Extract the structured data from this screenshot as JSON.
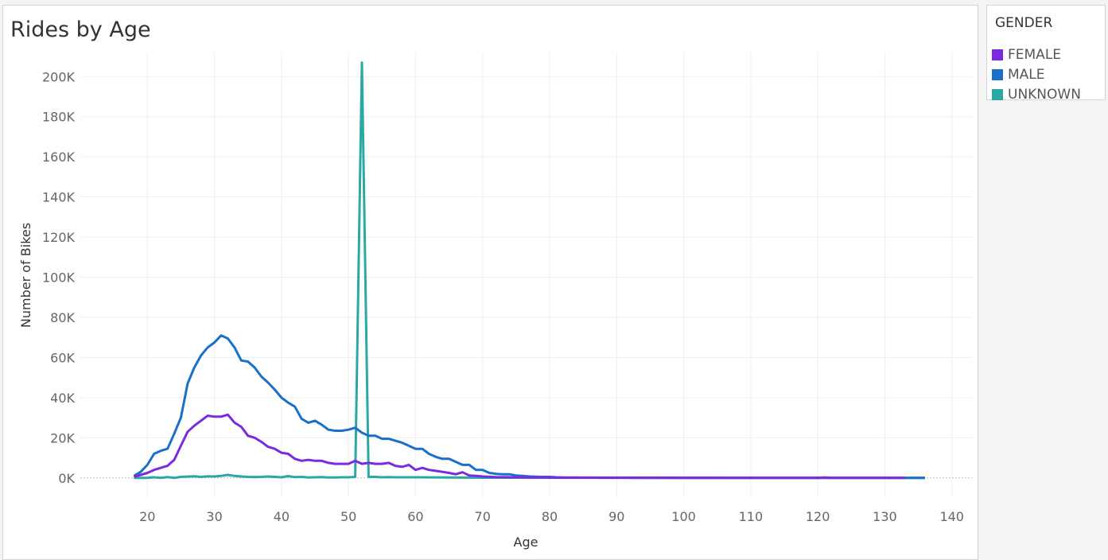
{
  "legend": {
    "title": "GENDER",
    "items": [
      {
        "label": "FEMALE",
        "color": "#7b2ae0"
      },
      {
        "label": "MALE",
        "color": "#1a6fc9"
      },
      {
        "label": "UNKNOWN",
        "color": "#2aa8a4"
      }
    ]
  },
  "chart_data": {
    "type": "line",
    "title": "Rides by Age",
    "xlabel": "Age",
    "ylabel": "Number of Bikes",
    "xlim": [
      10,
      143
    ],
    "ylim": [
      -10000,
      212000
    ],
    "xticks": [
      20,
      30,
      40,
      50,
      60,
      70,
      80,
      90,
      100,
      110,
      120,
      130,
      140
    ],
    "yticks": [
      0,
      20000,
      40000,
      60000,
      80000,
      100000,
      120000,
      140000,
      160000,
      180000,
      200000
    ],
    "ytick_labels": [
      "0K",
      "20K",
      "40K",
      "60K",
      "80K",
      "100K",
      "120K",
      "140K",
      "160K",
      "180K",
      "200K"
    ],
    "grid": true,
    "legend_position": "right",
    "series": [
      {
        "name": "FEMALE",
        "color": "#7b2ae0",
        "points": [
          [
            18,
            500
          ],
          [
            19,
            1500
          ],
          [
            20,
            2500
          ],
          [
            21,
            4000
          ],
          [
            22,
            5000
          ],
          [
            23,
            6000
          ],
          [
            24,
            9000
          ],
          [
            25,
            16000
          ],
          [
            26,
            23000
          ],
          [
            27,
            26000
          ],
          [
            28,
            28500
          ],
          [
            29,
            31000
          ],
          [
            30,
            30500
          ],
          [
            31,
            30500
          ],
          [
            32,
            31500
          ],
          [
            33,
            27500
          ],
          [
            34,
            25500
          ],
          [
            35,
            21000
          ],
          [
            36,
            20000
          ],
          [
            37,
            18000
          ],
          [
            38,
            15500
          ],
          [
            39,
            14500
          ],
          [
            40,
            12500
          ],
          [
            41,
            12000
          ],
          [
            42,
            9500
          ],
          [
            43,
            8500
          ],
          [
            44,
            9000
          ],
          [
            45,
            8500
          ],
          [
            46,
            8500
          ],
          [
            47,
            7500
          ],
          [
            48,
            7000
          ],
          [
            49,
            7000
          ],
          [
            50,
            7000
          ],
          [
            51,
            8500
          ],
          [
            52,
            7000
          ],
          [
            53,
            7500
          ],
          [
            54,
            7000
          ],
          [
            55,
            7000
          ],
          [
            56,
            7500
          ],
          [
            57,
            6000
          ],
          [
            58,
            5500
          ],
          [
            59,
            6500
          ],
          [
            60,
            4000
          ],
          [
            61,
            5000
          ],
          [
            62,
            4000
          ],
          [
            63,
            3500
          ],
          [
            64,
            3000
          ],
          [
            65,
            2500
          ],
          [
            66,
            1800
          ],
          [
            67,
            2800
          ],
          [
            68,
            1200
          ],
          [
            69,
            1000
          ],
          [
            70,
            700
          ],
          [
            72,
            400
          ],
          [
            75,
            300
          ],
          [
            80,
            150
          ],
          [
            85,
            100
          ],
          [
            90,
            50
          ],
          [
            100,
            30
          ],
          [
            110,
            20
          ],
          [
            120,
            20
          ],
          [
            121,
            200
          ],
          [
            122,
            10
          ],
          [
            130,
            10
          ],
          [
            133,
            5
          ]
        ]
      },
      {
        "name": "MALE",
        "color": "#1a6fc9",
        "points": [
          [
            18,
            1000
          ],
          [
            19,
            3000
          ],
          [
            20,
            6500
          ],
          [
            21,
            12000
          ],
          [
            22,
            13500
          ],
          [
            23,
            14500
          ],
          [
            24,
            22000
          ],
          [
            25,
            30000
          ],
          [
            26,
            47000
          ],
          [
            27,
            55000
          ],
          [
            28,
            61000
          ],
          [
            29,
            65000
          ],
          [
            30,
            67500
          ],
          [
            31,
            71000
          ],
          [
            32,
            69500
          ],
          [
            33,
            65000
          ],
          [
            34,
            58500
          ],
          [
            35,
            58000
          ],
          [
            36,
            55000
          ],
          [
            37,
            50500
          ],
          [
            38,
            47500
          ],
          [
            39,
            44000
          ],
          [
            40,
            40000
          ],
          [
            41,
            37500
          ],
          [
            42,
            35500
          ],
          [
            43,
            29500
          ],
          [
            44,
            27500
          ],
          [
            45,
            28500
          ],
          [
            46,
            26500
          ],
          [
            47,
            24000
          ],
          [
            48,
            23500
          ],
          [
            49,
            23500
          ],
          [
            50,
            24000
          ],
          [
            51,
            25000
          ],
          [
            52,
            22500
          ],
          [
            53,
            21000
          ],
          [
            54,
            21000
          ],
          [
            55,
            19500
          ],
          [
            56,
            19500
          ],
          [
            57,
            18500
          ],
          [
            58,
            17500
          ],
          [
            59,
            16000
          ],
          [
            60,
            14500
          ],
          [
            61,
            14500
          ],
          [
            62,
            12000
          ],
          [
            63,
            10500
          ],
          [
            64,
            9500
          ],
          [
            65,
            9500
          ],
          [
            66,
            8000
          ],
          [
            67,
            6500
          ],
          [
            68,
            6500
          ],
          [
            69,
            4000
          ],
          [
            70,
            4000
          ],
          [
            71,
            2500
          ],
          [
            72,
            2000
          ],
          [
            73,
            1800
          ],
          [
            74,
            1800
          ],
          [
            75,
            1200
          ],
          [
            76,
            1000
          ],
          [
            77,
            700
          ],
          [
            78,
            600
          ],
          [
            79,
            500
          ],
          [
            80,
            500
          ],
          [
            81,
            300
          ],
          [
            82,
            200
          ],
          [
            85,
            150
          ],
          [
            90,
            100
          ],
          [
            100,
            50
          ],
          [
            110,
            30
          ],
          [
            120,
            20
          ],
          [
            130,
            10
          ],
          [
            136,
            10
          ]
        ]
      },
      {
        "name": "UNKNOWN",
        "color": "#2aa8a4",
        "points": [
          [
            18,
            0
          ],
          [
            20,
            0
          ],
          [
            21,
            300
          ],
          [
            22,
            0
          ],
          [
            23,
            400
          ],
          [
            24,
            0
          ],
          [
            25,
            500
          ],
          [
            27,
            800
          ],
          [
            28,
            500
          ],
          [
            29,
            800
          ],
          [
            30,
            700
          ],
          [
            31,
            1000
          ],
          [
            32,
            1500
          ],
          [
            33,
            1000
          ],
          [
            34,
            700
          ],
          [
            35,
            500
          ],
          [
            36,
            400
          ],
          [
            37,
            500
          ],
          [
            38,
            700
          ],
          [
            39,
            500
          ],
          [
            40,
            300
          ],
          [
            41,
            900
          ],
          [
            42,
            400
          ],
          [
            43,
            500
          ],
          [
            44,
            200
          ],
          [
            45,
            300
          ],
          [
            46,
            400
          ],
          [
            47,
            200
          ],
          [
            48,
            200
          ],
          [
            49,
            300
          ],
          [
            50,
            300
          ],
          [
            51,
            500
          ],
          [
            52,
            207000
          ],
          [
            53,
            500
          ],
          [
            54,
            500
          ],
          [
            55,
            300
          ],
          [
            56,
            400
          ],
          [
            57,
            300
          ],
          [
            60,
            300
          ],
          [
            65,
            200
          ],
          [
            70,
            100
          ],
          [
            80,
            50
          ],
          [
            100,
            20
          ],
          [
            120,
            10
          ],
          [
            136,
            5
          ]
        ]
      }
    ]
  }
}
